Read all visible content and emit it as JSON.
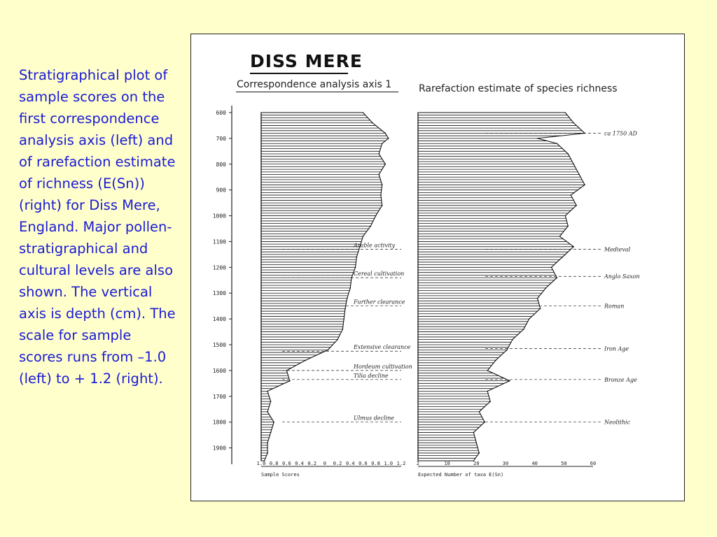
{
  "caption": "Stratigraphical plot of sample scores on the first correspondence analysis axis (left) and of rarefaction estimate of richness (E(Sn)) (right) for Diss Mere, England. Major pollen-stratigraphical and cultural levels are also shown. The vertical axis is depth (cm). The scale for sample scores runs from –1.0 (left) to + 1.2 (right).",
  "figure": {
    "title": "DISS MERE",
    "left_panel_title": "Correspondence analysis axis 1",
    "right_panel_title": "Rarefaction estimate of species richness",
    "depth_ticks": [
      "600",
      "700",
      "800",
      "900",
      "1000",
      "1100",
      "1200",
      "1300",
      "1400",
      "1500",
      "1600",
      "1700",
      "1800",
      "1900"
    ],
    "left_x_ticks": [
      "1.0",
      "0.8",
      "0.6",
      "0.4",
      "0.2",
      "0",
      "0.2",
      "0.4",
      "0.6",
      "0.8",
      "1.0",
      "1.2"
    ],
    "left_x_label": "Sample Scores",
    "right_x_ticks": [
      "2",
      "10",
      "20",
      "30",
      "40",
      "50",
      "60"
    ],
    "right_x_label": "Expected Number of taxa  E(Sn)",
    "left_annotations": [
      {
        "text": "Arable activity",
        "depth": 1130
      },
      {
        "text": "Cereal cultivation",
        "depth": 1240
      },
      {
        "text": "Further clearance",
        "depth": 1350
      },
      {
        "text": "Extensive clearance",
        "depth": 1525
      },
      {
        "text": "Hordeum cultivation",
        "depth": 1600
      },
      {
        "text": "Tilia decline",
        "depth": 1635
      },
      {
        "text": "Ulmus decline",
        "depth": 1800
      }
    ],
    "right_annotations": [
      {
        "text": "ca 1750 AD",
        "depth": 680
      },
      {
        "text": "Medieval",
        "depth": 1130
      },
      {
        "text": "Anglo Saxon",
        "depth": 1235
      },
      {
        "text": "Roman",
        "depth": 1350
      },
      {
        "text": "Iron Age",
        "depth": 1515
      },
      {
        "text": "Bronze Age",
        "depth": 1635
      },
      {
        "text": "Neolithic",
        "depth": 1800
      }
    ]
  },
  "chart_data": [
    {
      "type": "area",
      "title": "Correspondence analysis axis 1",
      "xlabel": "Sample Scores",
      "ylabel": "",
      "xlim": [
        -1.0,
        1.2
      ],
      "ylim": [
        600,
        1950
      ],
      "x": [
        600,
        640,
        680,
        700,
        720,
        760,
        800,
        840,
        880,
        920,
        960,
        1000,
        1040,
        1080,
        1120,
        1160,
        1200,
        1240,
        1280,
        1320,
        1360,
        1400,
        1440,
        1480,
        1520,
        1560,
        1600,
        1640,
        1680,
        1720,
        1760,
        1800,
        1840,
        1880,
        1920,
        1950
      ],
      "series": [
        {
          "values": [
            0.6,
            0.75,
            0.95,
            1.0,
            0.9,
            0.85,
            0.95,
            0.85,
            0.9,
            0.88,
            0.9,
            0.8,
            0.72,
            0.6,
            0.55,
            0.5,
            0.48,
            0.42,
            0.4,
            0.35,
            0.32,
            0.3,
            0.28,
            0.2,
            0.05,
            -0.3,
            -0.6,
            -0.55,
            -0.9,
            -0.85,
            -0.9,
            -0.8,
            -0.85,
            -0.9,
            -0.9,
            -0.95
          ]
        }
      ]
    },
    {
      "type": "area",
      "title": "Rarefaction estimate of species richness",
      "xlabel": "Expected Number of taxa  E(Sn)",
      "ylabel": "",
      "xlim": [
        2,
        65
      ],
      "ylim": [
        600,
        1950
      ],
      "x": [
        600,
        640,
        680,
        700,
        720,
        760,
        800,
        840,
        880,
        920,
        960,
        1000,
        1040,
        1080,
        1120,
        1160,
        1200,
        1240,
        1280,
        1320,
        1360,
        1400,
        1440,
        1480,
        1520,
        1560,
        1600,
        1640,
        1680,
        1720,
        1760,
        1800,
        1840,
        1880,
        1920,
        1950
      ],
      "series": [
        {
          "values": [
            55,
            58,
            62,
            45,
            52,
            56,
            58,
            60,
            62,
            57,
            59,
            55,
            56,
            53,
            58,
            54,
            50,
            52,
            48,
            45,
            46,
            42,
            40,
            36,
            34,
            30,
            27,
            35,
            27,
            28,
            24,
            26,
            22,
            23,
            24,
            22
          ]
        }
      ]
    }
  ]
}
